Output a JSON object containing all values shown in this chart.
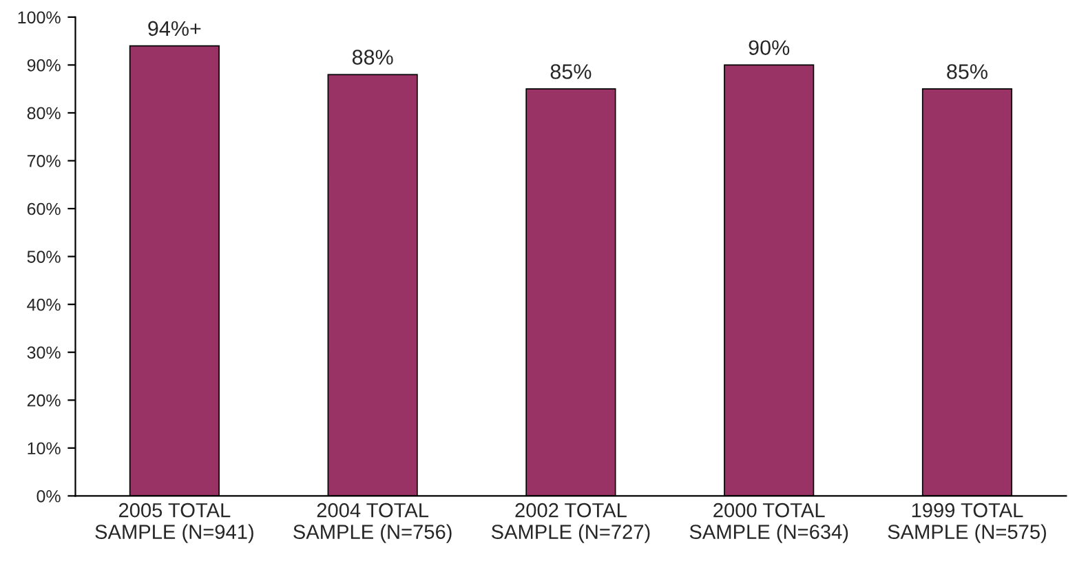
{
  "chart_data": {
    "type": "bar",
    "categories": [
      "2005 TOTAL\nSAMPLE (N=941)",
      "2004 TOTAL\nSAMPLE (N=756)",
      "2002 TOTAL\nSAMPLE (N=727)",
      "2000 TOTAL\nSAMPLE (N=634)",
      "1999 TOTAL\nSAMPLE (N=575)"
    ],
    "values": [
      94,
      88,
      85,
      90,
      85
    ],
    "value_labels": [
      "94%+",
      "88%",
      "85%",
      "90%",
      "85%"
    ],
    "color": "#993366",
    "ylim": [
      0,
      100
    ],
    "yticks": [
      {
        "value": 0,
        "label": "0%"
      },
      {
        "value": 10,
        "label": "10%"
      },
      {
        "value": 20,
        "label": "20%"
      },
      {
        "value": 30,
        "label": "30%"
      },
      {
        "value": 40,
        "label": "40%"
      },
      {
        "value": 50,
        "label": "50%"
      },
      {
        "value": 60,
        "label": "60%"
      },
      {
        "value": 70,
        "label": "70%"
      },
      {
        "value": 80,
        "label": "80%"
      },
      {
        "value": 90,
        "label": "90%"
      },
      {
        "value": 100,
        "label": "100%"
      }
    ],
    "grid": false
  }
}
